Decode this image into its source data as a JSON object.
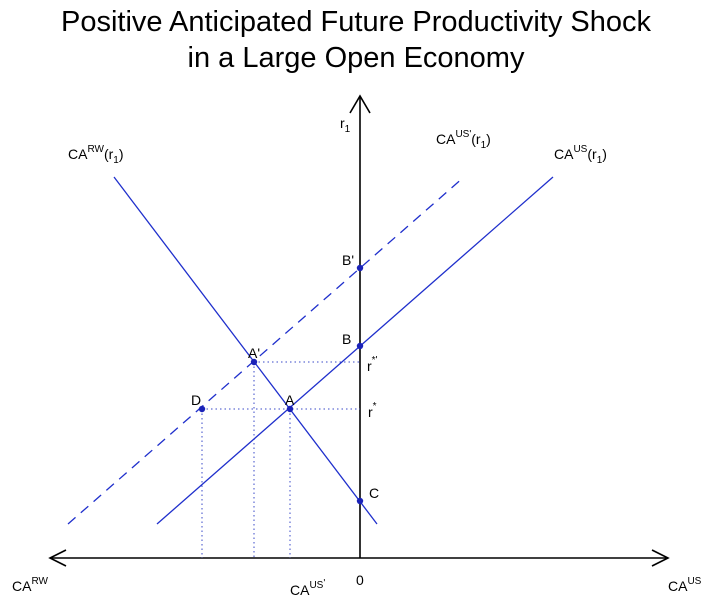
{
  "title": {
    "line1": "Positive Anticipated Future Productivity Shock",
    "line2": "in a Large Open Economy"
  },
  "axes": {
    "vertical_label_base": "r",
    "vertical_label_sub": "1",
    "right_label_base": "CA",
    "right_label_sup": "US",
    "left_label_base": "CA",
    "left_label_sup": "RW",
    "origin": "0",
    "bottom_label_base": "CA",
    "bottom_label_sup": "US",
    "bottom_label_prime": "'"
  },
  "curves": {
    "ca_rw": {
      "base": "CA",
      "sup": "RW",
      "arg": "(r",
      "arg_sub": "1",
      "close": ")"
    },
    "ca_us": {
      "base": "CA",
      "sup": "US",
      "arg": "(r",
      "arg_sub": "1",
      "close": ")"
    },
    "ca_us_prime": {
      "base": "CA",
      "sup": "US'",
      "arg": "(r",
      "arg_sub": "1",
      "close": ")"
    }
  },
  "points": {
    "A": "A",
    "A_prime": "A'",
    "B": "B",
    "B_prime": "B'",
    "C": "C",
    "D": "D"
  },
  "rates": {
    "r_star": "r",
    "r_star_sup": "*",
    "r_star_prime": "r",
    "r_star_prime_sup": "*'"
  },
  "colors": {
    "curve": "#1f2fcc",
    "point": "#1a22b8",
    "axis": "#000000",
    "guide": "#3848c8"
  }
}
